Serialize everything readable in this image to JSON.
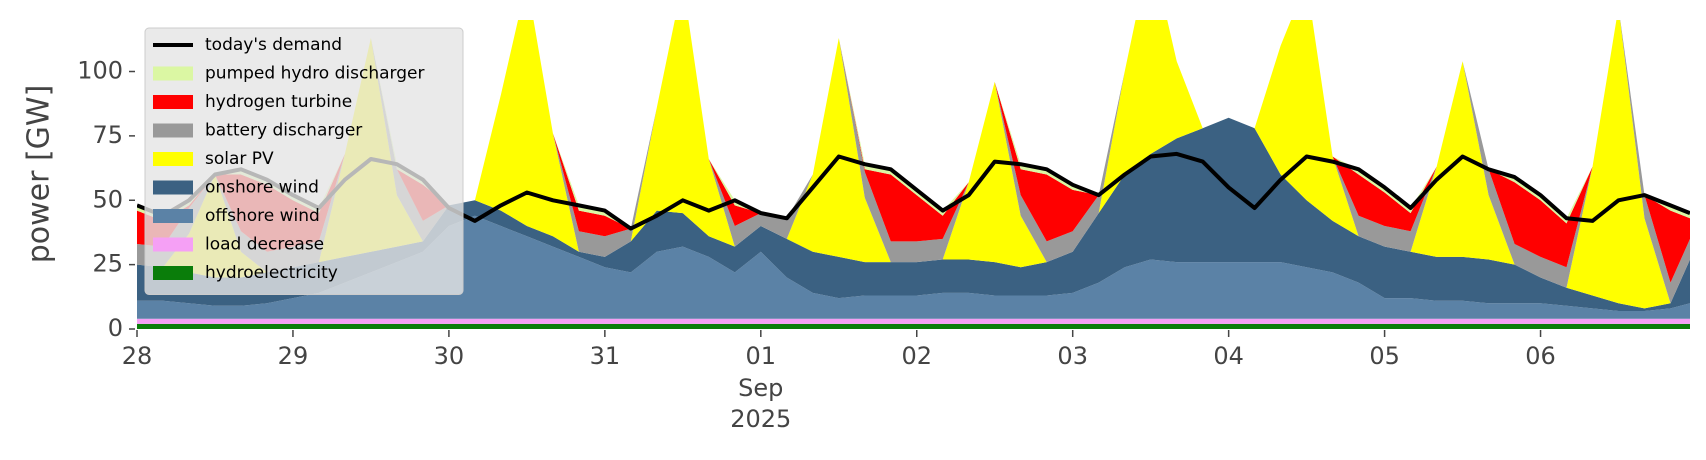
{
  "chart_data": {
    "type": "area",
    "ylabel": "power [GW]",
    "ylim": [
      0,
      120
    ],
    "yticks": [
      0,
      25,
      50,
      75,
      100
    ],
    "xlim": [
      "2025-08-28T00:00",
      "2025-09-06T23:00"
    ],
    "xticks": [
      {
        "value": "2025-08-28T00:00",
        "label": "28"
      },
      {
        "value": "2025-08-29T00:00",
        "label": "29"
      },
      {
        "value": "2025-08-30T00:00",
        "label": "30"
      },
      {
        "value": "2025-08-31T00:00",
        "label": "31"
      },
      {
        "value": "2025-09-01T00:00",
        "label": "01",
        "sublabels": [
          "Sep",
          "2025"
        ]
      },
      {
        "value": "2025-09-02T00:00",
        "label": "02"
      },
      {
        "value": "2025-09-03T00:00",
        "label": "03"
      },
      {
        "value": "2025-09-04T00:00",
        "label": "04"
      },
      {
        "value": "2025-09-05T00:00",
        "label": "05"
      },
      {
        "value": "2025-09-06T00:00",
        "label": "06"
      }
    ],
    "legend": "upper left",
    "x": [
      "2025-08-28T00:00",
      "2025-08-28T04:00",
      "2025-08-28T08:00",
      "2025-08-28T12:00",
      "2025-08-28T16:00",
      "2025-08-28T20:00",
      "2025-08-29T00:00",
      "2025-08-29T04:00",
      "2025-08-29T08:00",
      "2025-08-29T12:00",
      "2025-08-29T16:00",
      "2025-08-29T20:00",
      "2025-08-30T00:00",
      "2025-08-30T04:00",
      "2025-08-30T08:00",
      "2025-08-30T12:00",
      "2025-08-30T16:00",
      "2025-08-30T20:00",
      "2025-08-31T00:00",
      "2025-08-31T04:00",
      "2025-08-31T08:00",
      "2025-08-31T12:00",
      "2025-08-31T16:00",
      "2025-08-31T20:00",
      "2025-09-01T00:00",
      "2025-09-01T04:00",
      "2025-09-01T08:00",
      "2025-09-01T12:00",
      "2025-09-01T16:00",
      "2025-09-01T20:00",
      "2025-09-02T00:00",
      "2025-09-02T04:00",
      "2025-09-02T08:00",
      "2025-09-02T12:00",
      "2025-09-02T16:00",
      "2025-09-02T20:00",
      "2025-09-03T00:00",
      "2025-09-03T04:00",
      "2025-09-03T08:00",
      "2025-09-03T12:00",
      "2025-09-03T16:00",
      "2025-09-03T20:00",
      "2025-09-04T00:00",
      "2025-09-04T04:00",
      "2025-09-04T08:00",
      "2025-09-04T12:00",
      "2025-09-04T16:00",
      "2025-09-04T20:00",
      "2025-09-05T00:00",
      "2025-09-05T04:00",
      "2025-09-05T08:00",
      "2025-09-05T12:00",
      "2025-09-05T16:00",
      "2025-09-05T20:00",
      "2025-09-06T00:00",
      "2025-09-06T04:00",
      "2025-09-06T08:00",
      "2025-09-06T12:00",
      "2025-09-06T16:00",
      "2025-09-06T20:00",
      "2025-09-06T23:00"
    ],
    "series": [
      {
        "name": "today's demand",
        "type": "line",
        "color": "#000000",
        "values": [
          48,
          44,
          50,
          60,
          62,
          58,
          52,
          47,
          58,
          66,
          64,
          58,
          47,
          42,
          48,
          53,
          50,
          48,
          46,
          39,
          44,
          50,
          46,
          50,
          45,
          43,
          55,
          67,
          64,
          62,
          54,
          46,
          52,
          65,
          64,
          62,
          56,
          52,
          60,
          67,
          68,
          65,
          55,
          47,
          58,
          67,
          65,
          62,
          55,
          47,
          58,
          67,
          62,
          59,
          52,
          43,
          42,
          50,
          52,
          48,
          45
        ]
      },
      {
        "name": "pumped hydro discharger",
        "color": "#dbf7a3",
        "values": [
          2,
          2,
          2,
          0,
          2,
          2,
          2,
          2,
          0,
          0,
          2,
          2,
          0,
          0,
          0,
          0,
          0,
          2,
          2,
          0,
          0,
          0,
          0,
          2,
          0,
          0,
          0,
          0,
          2,
          2,
          2,
          2,
          0,
          0,
          2,
          2,
          2,
          0,
          0,
          0,
          0,
          0,
          0,
          0,
          0,
          0,
          0,
          2,
          2,
          2,
          0,
          0,
          0,
          2,
          2,
          2,
          0,
          0,
          0,
          2,
          2
        ]
      },
      {
        "name": "hydrogen turbine",
        "color": "#ff0000",
        "values": [
          13,
          10,
          1,
          0,
          22,
          26,
          18,
          11,
          0,
          0,
          0,
          14,
          0,
          0,
          0,
          0,
          0,
          8,
          8,
          0,
          0,
          0,
          0,
          8,
          0,
          0,
          0,
          0,
          1,
          26,
          18,
          9,
          0,
          0,
          10,
          26,
          16,
          0,
          0,
          0,
          0,
          0,
          0,
          0,
          0,
          0,
          0,
          16,
          13,
          7,
          0,
          0,
          0,
          24,
          22,
          17,
          0,
          0,
          0,
          28,
          8
        ]
      },
      {
        "name": "battery discharger",
        "color": "#999999",
        "values": [
          8,
          8,
          10,
          0,
          8,
          8,
          8,
          8,
          0,
          0,
          10,
          8,
          0,
          0,
          0,
          0,
          0,
          8,
          8,
          5,
          0,
          0,
          0,
          8,
          5,
          8,
          0,
          0,
          10,
          8,
          8,
          8,
          0,
          0,
          8,
          8,
          8,
          7,
          0,
          0,
          0,
          0,
          0,
          0,
          0,
          0,
          0,
          8,
          8,
          8,
          0,
          0,
          10,
          8,
          8,
          8,
          0,
          0,
          9,
          8,
          8
        ]
      },
      {
        "name": "solar PV",
        "color": "#ffff00",
        "values": [
          0,
          0,
          15,
          40,
          10,
          0,
          0,
          0,
          40,
          83,
          20,
          0,
          0,
          0,
          45,
          95,
          40,
          0,
          0,
          0,
          40,
          90,
          30,
          0,
          0,
          0,
          30,
          85,
          25,
          0,
          0,
          0,
          30,
          70,
          20,
          0,
          0,
          0,
          40,
          80,
          30,
          0,
          0,
          0,
          50,
          85,
          25,
          0,
          0,
          0,
          35,
          76,
          25,
          0,
          0,
          0,
          50,
          115,
          35,
          0,
          0
        ]
      },
      {
        "name": "onshore wind",
        "color": "#3b6182",
        "values": [
          14,
          13,
          12,
          11,
          11,
          12,
          12,
          12,
          10,
          8,
          6,
          4,
          8,
          6,
          6,
          4,
          4,
          2,
          4,
          12,
          16,
          13,
          8,
          10,
          10,
          15,
          16,
          16,
          13,
          13,
          13,
          13,
          13,
          13,
          11,
          13,
          16,
          27,
          36,
          41,
          48,
          52,
          56,
          52,
          34,
          26,
          20,
          18,
          20,
          18,
          17,
          17,
          17,
          15,
          10,
          7,
          5,
          3,
          1,
          2,
          17
        ]
      },
      {
        "name": "offshore wind",
        "color": "#5b82a6",
        "values": [
          7,
          7,
          6,
          5,
          5,
          6,
          8,
          10,
          14,
          18,
          22,
          26,
          36,
          40,
          36,
          32,
          28,
          24,
          20,
          18,
          26,
          28,
          24,
          18,
          26,
          16,
          10,
          8,
          9,
          9,
          9,
          10,
          10,
          9,
          9,
          9,
          10,
          14,
          20,
          23,
          22,
          22,
          22,
          22,
          22,
          20,
          18,
          14,
          8,
          8,
          7,
          7,
          6,
          6,
          6,
          5,
          4,
          3,
          3,
          4,
          6
        ]
      },
      {
        "name": "load decrease",
        "color": "#f5a0f5",
        "values": [
          2,
          2,
          2,
          2,
          2,
          2,
          2,
          2,
          2,
          2,
          2,
          2,
          2,
          2,
          2,
          2,
          2,
          2,
          2,
          2,
          2,
          2,
          2,
          2,
          2,
          2,
          2,
          2,
          2,
          2,
          2,
          2,
          2,
          2,
          2,
          2,
          2,
          2,
          2,
          2,
          2,
          2,
          2,
          2,
          2,
          2,
          2,
          2,
          2,
          2,
          2,
          2,
          2,
          2,
          2,
          2,
          2,
          2,
          2,
          2,
          2
        ]
      },
      {
        "name": "hydroelectricity",
        "color": "#0a7d0a",
        "values": [
          2,
          2,
          2,
          2,
          2,
          2,
          2,
          2,
          2,
          2,
          2,
          2,
          2,
          2,
          2,
          2,
          2,
          2,
          2,
          2,
          2,
          2,
          2,
          2,
          2,
          2,
          2,
          2,
          2,
          2,
          2,
          2,
          2,
          2,
          2,
          2,
          2,
          2,
          2,
          2,
          2,
          2,
          2,
          2,
          2,
          2,
          2,
          2,
          2,
          2,
          2,
          2,
          2,
          2,
          2,
          2,
          2,
          2,
          2,
          2,
          2
        ]
      }
    ]
  }
}
